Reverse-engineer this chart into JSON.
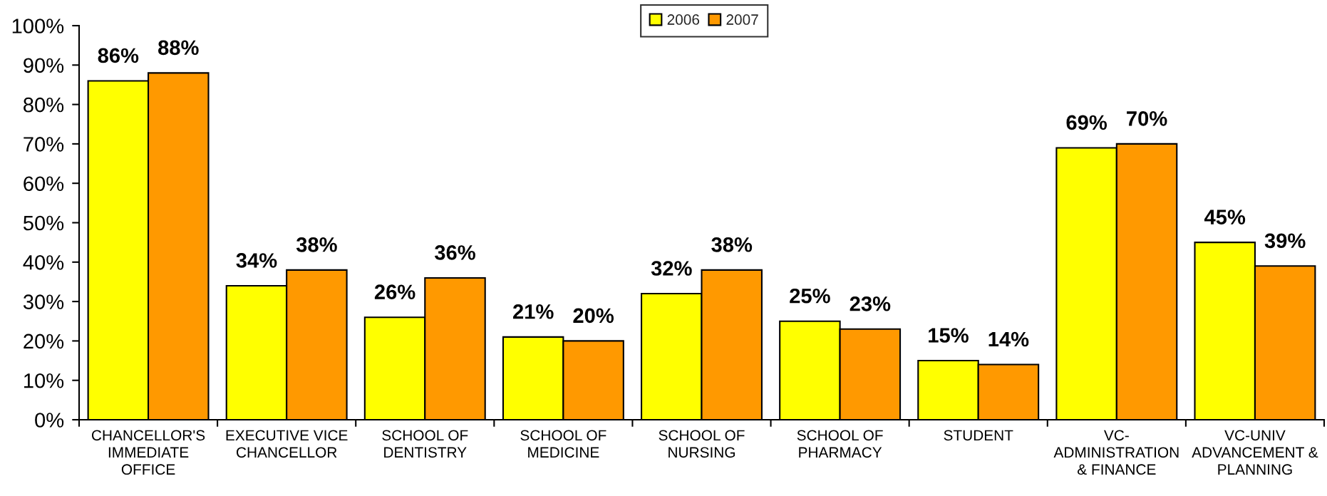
{
  "chart_data": {
    "type": "bar",
    "categories": [
      "CHANCELLOR'S IMMEDIATE OFFICE",
      "EXECUTIVE VICE CHANCELLOR",
      "SCHOOL OF DENTISTRY",
      "SCHOOL OF MEDICINE",
      "SCHOOL OF NURSING",
      "SCHOOL OF PHARMACY",
      "STUDENT",
      "VC-ADMINISTRATION & FINANCE",
      "VC-UNIV ADVANCEMENT & PLANNING"
    ],
    "series": [
      {
        "name": "2006",
        "color": "#ffff00",
        "values": [
          86,
          34,
          26,
          21,
          32,
          25,
          15,
          69,
          45
        ],
        "value_labels": [
          "86%",
          "34%",
          "26%",
          "21%",
          "32%",
          "25%",
          "15%",
          "69%",
          "45%"
        ]
      },
      {
        "name": "2007",
        "color": "#ff9900",
        "values": [
          88,
          38,
          36,
          20,
          38,
          23,
          14,
          70,
          39
        ],
        "value_labels": [
          "88%",
          "38%",
          "36%",
          "20%",
          "38%",
          "23%",
          "14%",
          "70%",
          "39%"
        ]
      }
    ],
    "ylim": [
      0,
      100
    ],
    "yticks": [
      {
        "value": 0,
        "label": "0%"
      },
      {
        "value": 10,
        "label": "10%"
      },
      {
        "value": 20,
        "label": "20%"
      },
      {
        "value": 30,
        "label": "30%"
      },
      {
        "value": 40,
        "label": "40%"
      },
      {
        "value": 50,
        "label": "50%"
      },
      {
        "value": 60,
        "label": "60%"
      },
      {
        "value": 70,
        "label": "70%"
      },
      {
        "value": 80,
        "label": "80%"
      },
      {
        "value": 90,
        "label": "90%"
      },
      {
        "value": 100,
        "label": "100%"
      }
    ],
    "legend": "top"
  }
}
